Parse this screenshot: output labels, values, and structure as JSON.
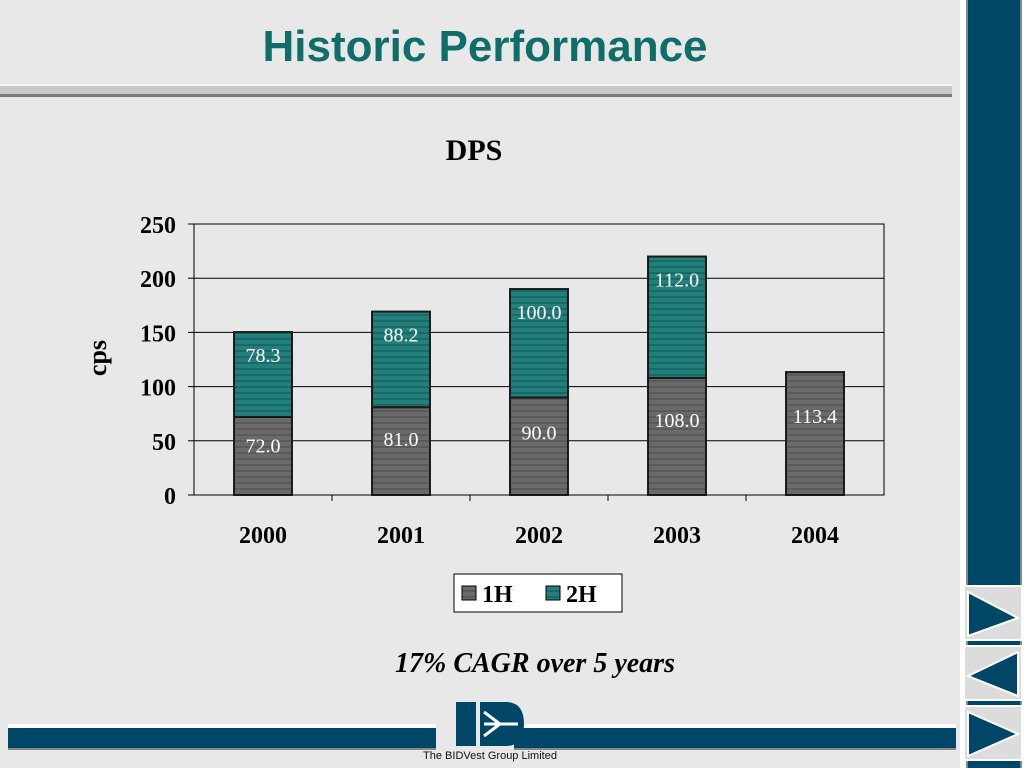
{
  "slide": {
    "title": "Historic Performance",
    "footnote": "17% CAGR over 5 years",
    "company_caption": "The BIDVest Group Limited",
    "colors": {
      "title": "#0f6e6a",
      "accent_dark": "#004666"
    }
  },
  "navigation": {
    "icons": [
      "forward-arrow-icon",
      "back-arrow-icon",
      "return-arrow-icon"
    ]
  },
  "chart_data": {
    "type": "bar",
    "stacked": true,
    "title": "DPS",
    "xlabel": "",
    "ylabel": "cps",
    "categories": [
      "2000",
      "2001",
      "2002",
      "2003",
      "2004"
    ],
    "ylim": [
      0,
      250
    ],
    "yticks": [
      "0",
      "50",
      "100",
      "150",
      "200",
      "250"
    ],
    "grid": true,
    "legend": "bottom",
    "series": [
      {
        "name": "1H",
        "values": [
          72.0,
          81.0,
          90.0,
          108.0,
          113.4
        ],
        "labels": [
          "72.0",
          "81.0",
          "90.0",
          "108.0",
          "113.4"
        ],
        "color": "#5a5a5a"
      },
      {
        "name": "2H",
        "values": [
          78.3,
          88.2,
          100.0,
          112.0,
          null
        ],
        "labels": [
          "78.3",
          "88.2",
          "100.0",
          "112.0",
          ""
        ],
        "color": "#1e7a76"
      }
    ]
  }
}
